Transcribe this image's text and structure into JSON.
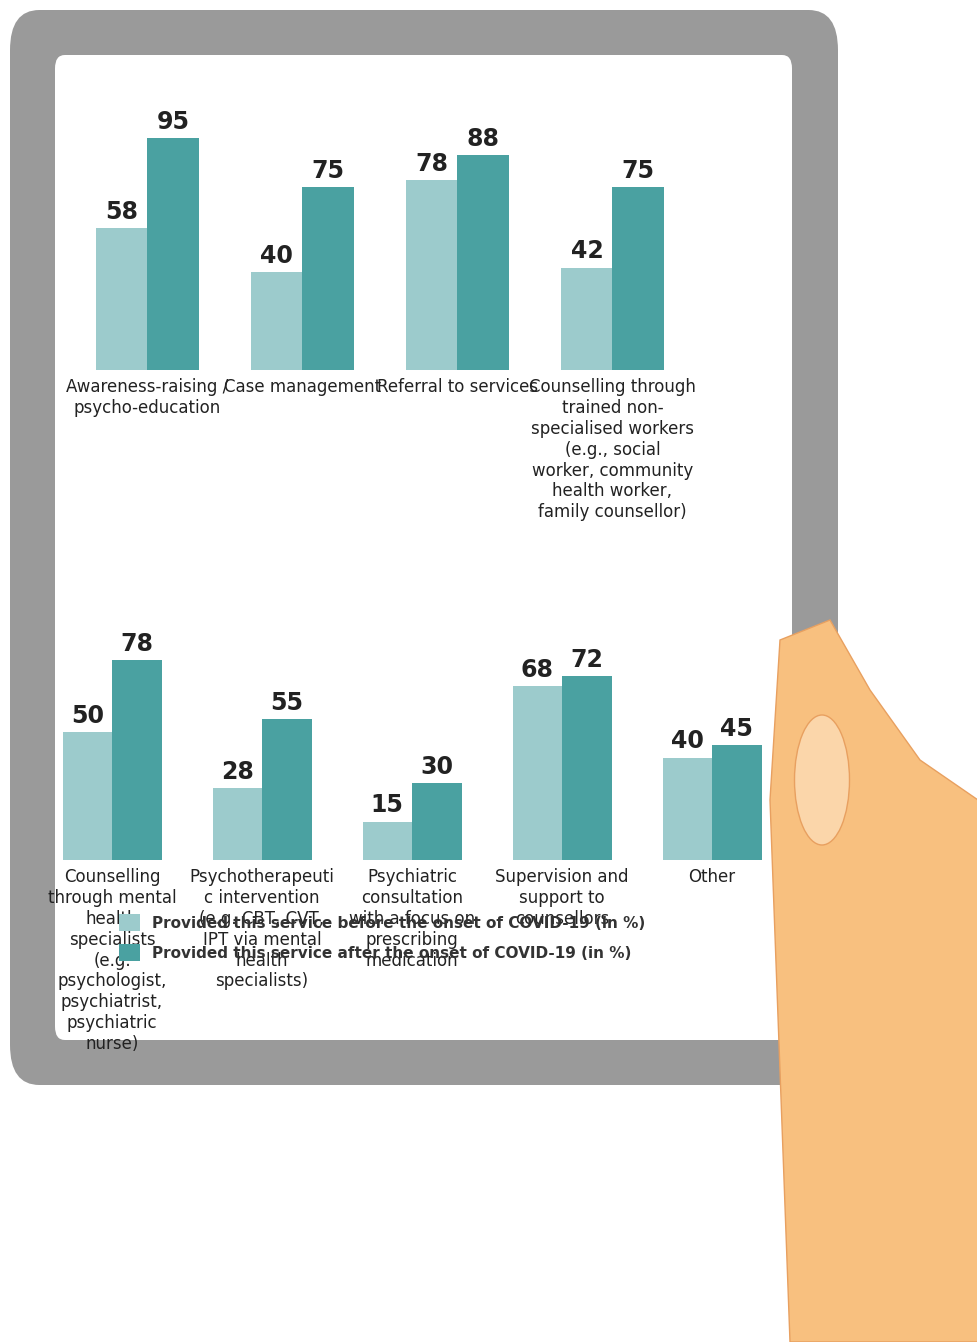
{
  "chart_data": {
    "type": "bar",
    "categories": [
      "Awareness-raising / psycho-education",
      "Case management",
      "Referral to services",
      "Counselling through trained non-specialised workers (e.g., social worker, community health worker, family counsellor)",
      "Counselling through mental health specialists (e.g. psychologist, psychiatrist, psychiatric nurse)",
      "Psychotherapeutic intervention (e.g. CBT, CVT, IPT via mental health specialists)",
      "Psychiatric consultation with a focus on prescribing medication",
      "Supervision and support to counsellors",
      "Other"
    ],
    "series": [
      {
        "name": "Provided this service before the onset of COVID-19 (in %)",
        "color": "#9ccbcc",
        "values": [
          58,
          40,
          78,
          42,
          50,
          28,
          15,
          68,
          40
        ]
      },
      {
        "name": "Provided this service after the onset of COVID-19 (in %)",
        "color": "#4aa1a1",
        "values": [
          95,
          75,
          88,
          75,
          78,
          55,
          30,
          72,
          45
        ]
      }
    ],
    "ylim": [
      0,
      100
    ],
    "data_labels": true,
    "tick_labels": "x",
    "legend": "lower left"
  }
}
